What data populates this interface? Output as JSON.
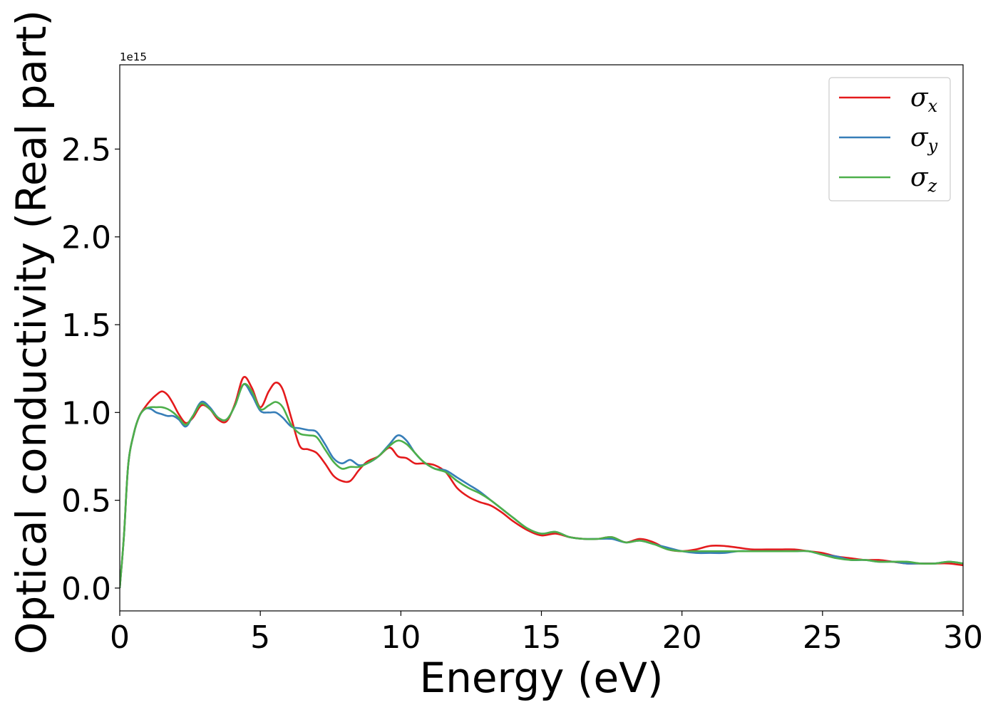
{
  "chart_data": {
    "type": "line",
    "xlabel": "Energy (eV)",
    "ylabel": "Optical conductivity (Real part)",
    "y_offset_label": "1e15",
    "xlim": [
      0,
      30
    ],
    "ylim": [
      -0.13,
      2.98
    ],
    "xticks": [
      0,
      5,
      10,
      15,
      20,
      25,
      30
    ],
    "xtick_labels": [
      "0",
      "5",
      "10",
      "15",
      "20",
      "25",
      "30"
    ],
    "yticks": [
      0.0,
      0.5,
      1.0,
      1.5,
      2.0,
      2.5
    ],
    "ytick_labels": [
      "0.0",
      "0.5",
      "1.0",
      "1.5",
      "2.0",
      "2.5"
    ],
    "grid": false,
    "legend_position": "top-right",
    "series": [
      {
        "name": "σ",
        "subscript": "x",
        "color": "#e41a1c",
        "x": [
          0,
          0.15,
          0.3,
          0.5,
          0.7,
          0.9,
          1.1,
          1.3,
          1.5,
          1.7,
          1.9,
          2.1,
          2.35,
          2.6,
          2.9,
          3.2,
          3.5,
          3.8,
          4.1,
          4.4,
          4.7,
          5.0,
          5.3,
          5.55,
          5.8,
          6.1,
          6.4,
          6.7,
          7.0,
          7.3,
          7.6,
          7.9,
          8.2,
          8.5,
          8.8,
          9.2,
          9.6,
          9.9,
          10.2,
          10.5,
          10.8,
          11.2,
          11.6,
          12.0,
          12.4,
          12.8,
          13.2,
          13.6,
          14.0,
          14.5,
          15.0,
          15.5,
          16.0,
          16.5,
          17.0,
          17.5,
          18.0,
          18.5,
          19.0,
          19.5,
          20.0,
          20.5,
          21.0,
          21.5,
          22.0,
          22.5,
          23.0,
          23.5,
          24.0,
          24.5,
          25.0,
          25.5,
          26.0,
          26.5,
          27.0,
          27.5,
          28.0,
          28.5,
          29.0,
          29.5,
          30.0
        ],
        "values": [
          0.0,
          0.3,
          0.7,
          0.88,
          0.98,
          1.03,
          1.07,
          1.1,
          1.12,
          1.1,
          1.05,
          0.99,
          0.94,
          0.97,
          1.04,
          1.02,
          0.96,
          0.95,
          1.05,
          1.2,
          1.14,
          1.03,
          1.12,
          1.17,
          1.13,
          0.97,
          0.81,
          0.79,
          0.77,
          0.71,
          0.64,
          0.61,
          0.61,
          0.67,
          0.72,
          0.75,
          0.8,
          0.75,
          0.74,
          0.71,
          0.71,
          0.7,
          0.66,
          0.57,
          0.52,
          0.49,
          0.47,
          0.43,
          0.38,
          0.33,
          0.3,
          0.31,
          0.29,
          0.28,
          0.28,
          0.29,
          0.26,
          0.28,
          0.26,
          0.22,
          0.21,
          0.22,
          0.24,
          0.24,
          0.23,
          0.22,
          0.22,
          0.22,
          0.22,
          0.21,
          0.2,
          0.18,
          0.17,
          0.16,
          0.16,
          0.15,
          0.14,
          0.14,
          0.14,
          0.14,
          0.13
        ]
      },
      {
        "name": "σ",
        "subscript": "y",
        "color": "#377eb8",
        "x": [
          0,
          0.15,
          0.3,
          0.5,
          0.7,
          0.9,
          1.1,
          1.3,
          1.5,
          1.7,
          1.9,
          2.1,
          2.35,
          2.6,
          2.9,
          3.2,
          3.5,
          3.8,
          4.1,
          4.4,
          4.7,
          5.0,
          5.3,
          5.55,
          5.8,
          6.1,
          6.4,
          6.7,
          7.0,
          7.3,
          7.6,
          7.9,
          8.2,
          8.5,
          8.8,
          9.2,
          9.6,
          9.9,
          10.2,
          10.5,
          10.8,
          11.2,
          11.6,
          12.0,
          12.4,
          12.8,
          13.2,
          13.6,
          14.0,
          14.5,
          15.0,
          15.5,
          16.0,
          16.5,
          17.0,
          17.5,
          18.0,
          18.5,
          19.0,
          19.5,
          20.0,
          20.5,
          21.0,
          21.5,
          22.0,
          22.5,
          23.0,
          23.5,
          24.0,
          24.5,
          25.0,
          25.5,
          26.0,
          26.5,
          27.0,
          27.5,
          28.0,
          28.5,
          29.0,
          29.5,
          30.0
        ],
        "values": [
          0.0,
          0.3,
          0.7,
          0.88,
          0.98,
          1.02,
          1.02,
          1.0,
          0.99,
          0.98,
          0.98,
          0.96,
          0.92,
          0.98,
          1.06,
          1.03,
          0.97,
          0.96,
          1.04,
          1.16,
          1.1,
          1.01,
          1.0,
          1.0,
          0.97,
          0.92,
          0.91,
          0.9,
          0.89,
          0.82,
          0.74,
          0.71,
          0.73,
          0.7,
          0.71,
          0.75,
          0.82,
          0.87,
          0.84,
          0.77,
          0.72,
          0.68,
          0.67,
          0.63,
          0.59,
          0.55,
          0.5,
          0.45,
          0.4,
          0.34,
          0.31,
          0.32,
          0.29,
          0.28,
          0.28,
          0.28,
          0.26,
          0.27,
          0.25,
          0.23,
          0.21,
          0.2,
          0.2,
          0.2,
          0.21,
          0.21,
          0.21,
          0.21,
          0.21,
          0.21,
          0.19,
          0.18,
          0.16,
          0.16,
          0.15,
          0.15,
          0.14,
          0.14,
          0.14,
          0.15,
          0.14
        ]
      },
      {
        "name": "σ",
        "subscript": "z",
        "color": "#4daf4a",
        "x": [
          0,
          0.15,
          0.3,
          0.5,
          0.7,
          0.9,
          1.1,
          1.3,
          1.5,
          1.7,
          1.9,
          2.1,
          2.35,
          2.6,
          2.9,
          3.2,
          3.5,
          3.8,
          4.1,
          4.4,
          4.7,
          5.0,
          5.3,
          5.55,
          5.8,
          6.1,
          6.4,
          6.7,
          7.0,
          7.3,
          7.6,
          7.9,
          8.2,
          8.5,
          8.8,
          9.2,
          9.6,
          9.9,
          10.2,
          10.5,
          10.8,
          11.2,
          11.6,
          12.0,
          12.4,
          12.8,
          13.2,
          13.6,
          14.0,
          14.5,
          15.0,
          15.5,
          16.0,
          16.5,
          17.0,
          17.5,
          18.0,
          18.5,
          19.0,
          19.5,
          20.0,
          20.5,
          21.0,
          21.5,
          22.0,
          22.5,
          23.0,
          23.5,
          24.0,
          24.5,
          25.0,
          25.5,
          26.0,
          26.5,
          27.0,
          27.5,
          28.0,
          28.5,
          29.0,
          29.5,
          30.0
        ],
        "values": [
          0.0,
          0.3,
          0.7,
          0.88,
          0.98,
          1.02,
          1.03,
          1.03,
          1.03,
          1.02,
          1.0,
          0.97,
          0.93,
          0.98,
          1.05,
          1.02,
          0.97,
          0.96,
          1.04,
          1.16,
          1.12,
          1.02,
          1.04,
          1.06,
          1.03,
          0.93,
          0.88,
          0.87,
          0.86,
          0.79,
          0.72,
          0.68,
          0.69,
          0.69,
          0.71,
          0.75,
          0.81,
          0.84,
          0.82,
          0.77,
          0.72,
          0.68,
          0.66,
          0.61,
          0.57,
          0.54,
          0.5,
          0.45,
          0.4,
          0.34,
          0.31,
          0.32,
          0.29,
          0.28,
          0.28,
          0.29,
          0.26,
          0.27,
          0.25,
          0.22,
          0.21,
          0.21,
          0.21,
          0.21,
          0.21,
          0.21,
          0.21,
          0.21,
          0.21,
          0.21,
          0.19,
          0.17,
          0.16,
          0.16,
          0.15,
          0.15,
          0.15,
          0.14,
          0.14,
          0.15,
          0.14
        ]
      }
    ]
  }
}
